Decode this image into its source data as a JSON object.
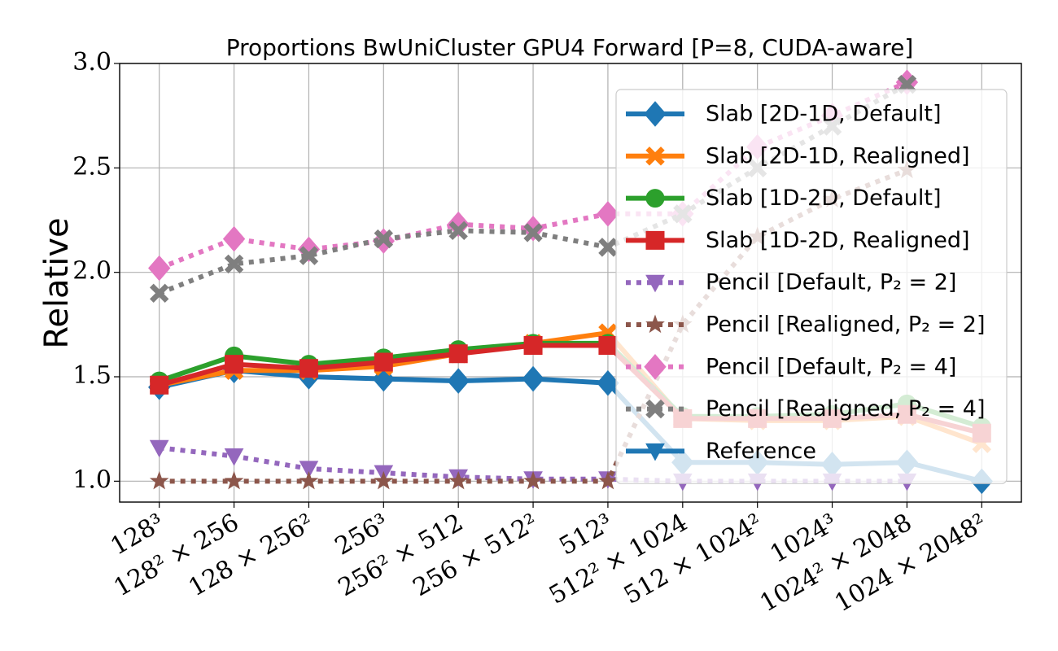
{
  "chart_data": {
    "type": "line",
    "title": "Proportions BwUniCluster GPU4 Forward [P=8, CUDA-aware]",
    "ylabel": "Relative",
    "categories": [
      "128³",
      "128² × 256",
      "128 × 256²",
      "256³",
      "256² × 512",
      "256 × 512²",
      "512³",
      "512² × 1024",
      "512 × 1024²",
      "1024³",
      "1024² × 2048",
      "1024 × 2048²"
    ],
    "ylim": [
      0.9,
      3.0
    ],
    "yticks": [
      {
        "value": 1,
        "label": "1.0"
      },
      {
        "value": 1.5,
        "label": "1.5"
      },
      {
        "value": 2,
        "label": "2.0"
      },
      {
        "value": 2.5,
        "label": "2.5"
      },
      {
        "value": 3,
        "label": "3.0"
      }
    ],
    "grid": true,
    "legend": "upper right",
    "series": [
      {
        "name": "Slab [2D-1D, Default]",
        "color": "#1f77b4",
        "marker": "diamond",
        "linestyle": "solid",
        "values": [
          1.45,
          1.53,
          1.5,
          1.49,
          1.48,
          1.49,
          1.47,
          1.09,
          1.09,
          1.08,
          1.09,
          1.0
        ]
      },
      {
        "name": "Slab [2D-1D, Realigned]",
        "color": "#ff7f0e",
        "marker": "x",
        "linestyle": "solid",
        "values": [
          1.46,
          1.53,
          1.53,
          1.55,
          1.61,
          1.66,
          1.71,
          1.3,
          1.29,
          1.29,
          1.31,
          1.18
        ]
      },
      {
        "name": "Slab [1D-2D, Default]",
        "color": "#2ca02c",
        "marker": "circle",
        "linestyle": "solid",
        "values": [
          1.48,
          1.6,
          1.56,
          1.59,
          1.63,
          1.66,
          1.66,
          1.31,
          1.31,
          1.32,
          1.37,
          1.26
        ]
      },
      {
        "name": "Slab [1D-2D, Realigned]",
        "color": "#d62728",
        "marker": "square",
        "linestyle": "solid",
        "values": [
          1.46,
          1.56,
          1.54,
          1.57,
          1.61,
          1.65,
          1.65,
          1.3,
          1.3,
          1.3,
          1.32,
          1.23
        ]
      },
      {
        "name": "Pencil [Default, P₂ = 2]",
        "color": "#9467bd",
        "marker": "triangle-down",
        "linestyle": "dotted",
        "values": [
          1.16,
          1.12,
          1.06,
          1.04,
          1.02,
          1.01,
          1.01,
          1.0,
          1.0,
          1.0,
          1.0,
          null
        ]
      },
      {
        "name": "Pencil [Realigned, P₂ = 2]",
        "color": "#8c564b",
        "marker": "star",
        "linestyle": "dotted",
        "values": [
          1.0,
          1.0,
          1.0,
          1.0,
          1.0,
          1.0,
          1.0,
          1.75,
          2.17,
          2.35,
          2.49,
          null
        ]
      },
      {
        "name": "Pencil [Default, P₂ = 4]",
        "color": "#e377c2",
        "marker": "diamond",
        "linestyle": "dotted",
        "values": [
          2.02,
          2.16,
          2.11,
          2.15,
          2.23,
          2.21,
          2.28,
          2.28,
          2.6,
          2.75,
          2.91,
          null
        ]
      },
      {
        "name": "Pencil [Realigned, P₂ = 4]",
        "color": "#7f7f7f",
        "marker": "x",
        "linestyle": "dotted",
        "values": [
          1.9,
          2.04,
          2.08,
          2.16,
          2.2,
          2.19,
          2.12,
          2.28,
          2.5,
          2.7,
          2.9,
          null
        ]
      },
      {
        "name": "Reference",
        "color": "#1f77b4",
        "marker": "triangle-down",
        "linestyle": "solid",
        "values": [
          null,
          null,
          null,
          null,
          null,
          null,
          null,
          null,
          null,
          null,
          null,
          null
        ]
      }
    ]
  }
}
